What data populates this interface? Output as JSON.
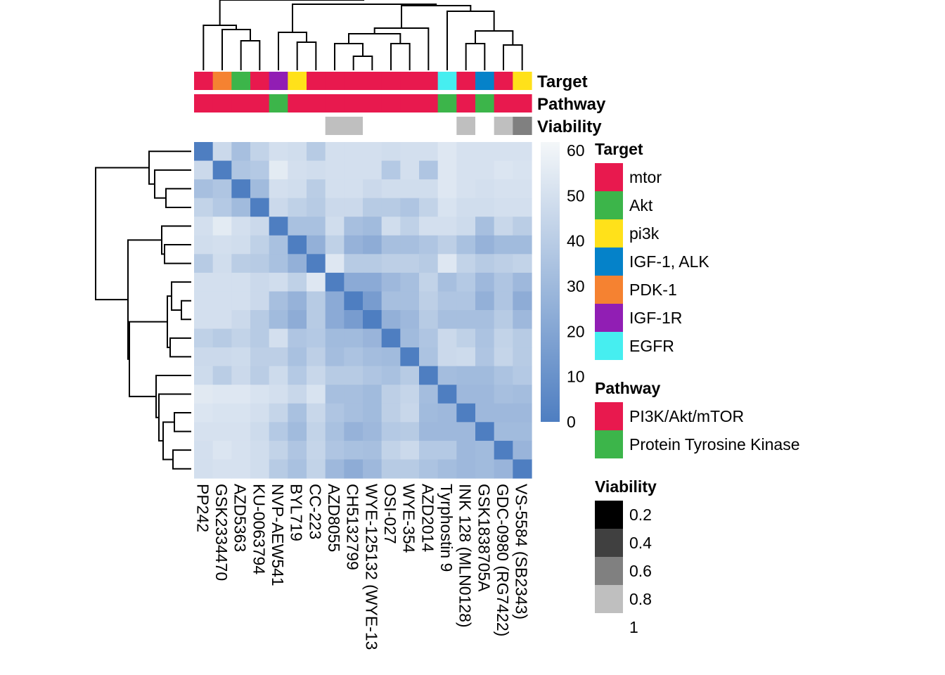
{
  "chart_data": {
    "type": "heatmap",
    "title": "",
    "labels": [
      "PP242",
      "GSK2334470",
      "AZD5363",
      "KU-0063794",
      "NVP-AEW541",
      "BYL719",
      "CC-223",
      "AZD8055",
      "CH5132799",
      "WYE-125132 (WYE-13",
      "OSI-027",
      "WYE-354",
      "AZD2014",
      "Tyrphostin 9",
      "INK 128 (MLN0128)",
      "GSK1838705A",
      "GDC-0980 (RG7422)",
      "VS-5584 (SB2343)"
    ],
    "values": [
      [
        0,
        45,
        32,
        42,
        48,
        47,
        38,
        48,
        48,
        48,
        47,
        48,
        48,
        52,
        49,
        49,
        49,
        49
      ],
      [
        45,
        0,
        35,
        37,
        54,
        48,
        47,
        48,
        48,
        48,
        37,
        48,
        35,
        52,
        49,
        49,
        51,
        50
      ],
      [
        32,
        35,
        0,
        30,
        48,
        47,
        39,
        48,
        48,
        45,
        47,
        47,
        47,
        52,
        49,
        48,
        49,
        49
      ],
      [
        42,
        37,
        30,
        0,
        45,
        41,
        38,
        45,
        45,
        38,
        38,
        35,
        42,
        50,
        47,
        47,
        48,
        48
      ],
      [
        48,
        54,
        48,
        45,
        0,
        33,
        33,
        47,
        32,
        30,
        47,
        41,
        48,
        48,
        46,
        32,
        44,
        39
      ],
      [
        47,
        48,
        47,
        41,
        33,
        0,
        25,
        41,
        26,
        23,
        32,
        32,
        35,
        40,
        33,
        26,
        30,
        30
      ],
      [
        38,
        47,
        39,
        38,
        33,
        25,
        0,
        52,
        38,
        38,
        40,
        40,
        38,
        52,
        42,
        38,
        40,
        42
      ],
      [
        48,
        48,
        48,
        45,
        47,
        41,
        52,
        0,
        22,
        22,
        29,
        32,
        42,
        32,
        37,
        29,
        35,
        29
      ],
      [
        48,
        48,
        48,
        45,
        32,
        26,
        38,
        22,
        0,
        15,
        32,
        32,
        40,
        35,
        35,
        25,
        35,
        23
      ],
      [
        48,
        48,
        45,
        38,
        30,
        23,
        38,
        22,
        15,
        0,
        25,
        29,
        38,
        32,
        32,
        32,
        38,
        29
      ],
      [
        41,
        38,
        42,
        38,
        48,
        35,
        37,
        30,
        30,
        27,
        0,
        30,
        35,
        45,
        41,
        34,
        42,
        38
      ],
      [
        45,
        45,
        46,
        40,
        40,
        33,
        40,
        31,
        34,
        31,
        30,
        0,
        34,
        45,
        46,
        35,
        43,
        38
      ],
      [
        46,
        39,
        45,
        39,
        46,
        37,
        44,
        38,
        38,
        35,
        33,
        38,
        0,
        31,
        30,
        30,
        34,
        37
      ],
      [
        53,
        52,
        52,
        50,
        48,
        44,
        50,
        32,
        32,
        30,
        40,
        43,
        31,
        0,
        29,
        29,
        32,
        31
      ],
      [
        51,
        50,
        50,
        48,
        43,
        33,
        44,
        35,
        32,
        30,
        40,
        44,
        30,
        29,
        0,
        29,
        29,
        29
      ],
      [
        49,
        49,
        49,
        46,
        37,
        30,
        42,
        33,
        26,
        29,
        37,
        38,
        29,
        29,
        29,
        0,
        30,
        30
      ],
      [
        48,
        51,
        49,
        47,
        42,
        35,
        43,
        35,
        33,
        32,
        42,
        45,
        37,
        37,
        29,
        30,
        0,
        27
      ],
      [
        48,
        49,
        49,
        47,
        38,
        33,
        42,
        29,
        23,
        29,
        38,
        38,
        34,
        31,
        29,
        30,
        27,
        0
      ]
    ],
    "annotations": {
      "Target": [
        "mtor",
        "PDK-1",
        "Akt",
        "mtor",
        "IGF-1R",
        "pi3k",
        "mtor",
        "mtor",
        "mtor",
        "mtor",
        "mtor",
        "mtor",
        "mtor",
        "EGFR",
        "mtor",
        "IGF-1, ALK",
        "mtor",
        "pi3k"
      ],
      "Pathway": [
        "PI3K/Akt/mTOR",
        "PI3K/Akt/mTOR",
        "PI3K/Akt/mTOR",
        "PI3K/Akt/mTOR",
        "Protein Tyrosine Kinase",
        "PI3K/Akt/mTOR",
        "PI3K/Akt/mTOR",
        "PI3K/Akt/mTOR",
        "PI3K/Akt/mTOR",
        "PI3K/Akt/mTOR",
        "PI3K/Akt/mTOR",
        "PI3K/Akt/mTOR",
        "PI3K/Akt/mTOR",
        "Protein Tyrosine Kinase",
        "PI3K/Akt/mTOR",
        "Protein Tyrosine Kinase",
        "PI3K/Akt/mTOR",
        "PI3K/Akt/mTOR"
      ],
      "Viability": [
        1,
        1,
        1,
        1,
        1,
        1,
        1,
        0.8,
        0.8,
        1,
        1,
        1,
        1,
        1,
        0.8,
        1,
        0.8,
        0.6
      ]
    },
    "annotation_titles": [
      "Target",
      "Pathway",
      "Viability"
    ],
    "colorbar": {
      "ticks": [
        60,
        50,
        40,
        30,
        20,
        10,
        0
      ],
      "min": 0,
      "max": 60,
      "low_color": "#4e7ec1",
      "high_color": "#f4f7f9"
    },
    "legends": {
      "Target": {
        "title": "Target",
        "items": [
          {
            "label": "mtor",
            "color": "#e8194e"
          },
          {
            "label": "Akt",
            "color": "#3cb54a"
          },
          {
            "label": "pi3k",
            "color": "#ffe11a"
          },
          {
            "label": "IGF-1, ALK",
            "color": "#0582c9"
          },
          {
            "label": "PDK-1",
            "color": "#f58231"
          },
          {
            "label": "IGF-1R",
            "color": "#911eb4"
          },
          {
            "label": "EGFR",
            "color": "#46eef0"
          }
        ]
      },
      "Pathway": {
        "title": "Pathway",
        "items": [
          {
            "label": "PI3K/Akt/mTOR",
            "color": "#e8194e"
          },
          {
            "label": "Protein Tyrosine Kinase",
            "color": "#3cb54a"
          }
        ]
      },
      "Viability": {
        "title": "Viability",
        "items": [
          {
            "label": "0.2",
            "color": "#000000"
          },
          {
            "label": "0.4",
            "color": "#404040"
          },
          {
            "label": "0.6",
            "color": "#808080"
          },
          {
            "label": "0.8",
            "color": "#bfbfbf"
          },
          {
            "label": "1",
            "color": "#ffffff"
          }
        ]
      }
    }
  }
}
